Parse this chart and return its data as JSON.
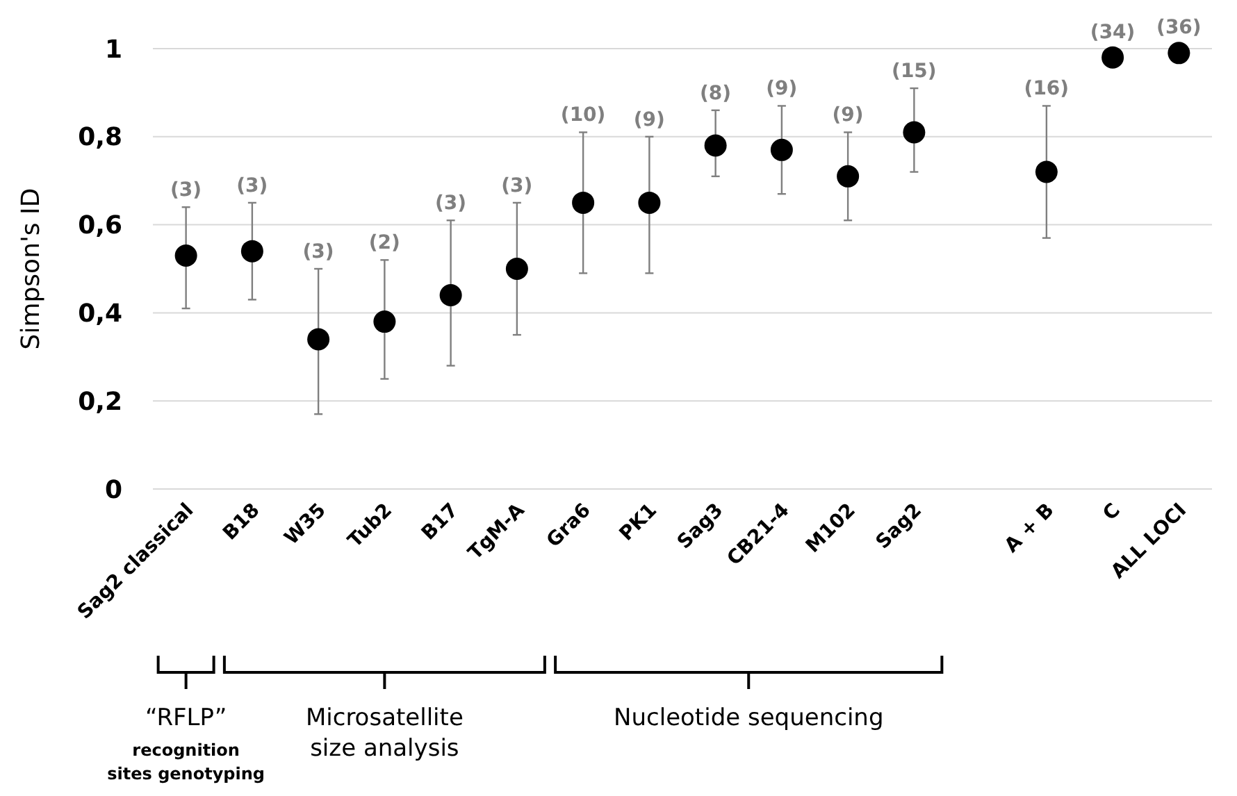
{
  "chart_data": {
    "type": "scatter",
    "ylabel": "Simpson's ID",
    "categories": [
      "Sag2 classical",
      "B18",
      "W35",
      "Tub2",
      "B17",
      "TgM-A",
      "Gra6",
      "PK1",
      "Sag3",
      "CB21-4",
      "M102",
      "Sag2",
      null,
      "A + B",
      "C",
      "ALL LOCI"
    ],
    "values": [
      0.53,
      0.54,
      0.34,
      0.38,
      0.44,
      0.5,
      0.65,
      0.65,
      0.78,
      0.77,
      0.71,
      0.81,
      null,
      0.72,
      0.98,
      0.99
    ],
    "errors": [
      [
        0.41,
        0.64
      ],
      [
        0.43,
        0.65
      ],
      [
        0.17,
        0.5
      ],
      [
        0.25,
        0.52
      ],
      [
        0.28,
        0.61
      ],
      [
        0.35,
        0.65
      ],
      [
        0.49,
        0.81
      ],
      [
        0.49,
        0.8
      ],
      [
        0.71,
        0.86
      ],
      [
        0.67,
        0.87
      ],
      [
        0.61,
        0.81
      ],
      [
        0.72,
        0.91
      ],
      null,
      [
        0.57,
        0.87
      ],
      null,
      null
    ],
    "color": "#000000",
    "marker": "circle",
    "grid": "y",
    "ylim": [
      0,
      1
    ],
    "yticks": [
      0,
      {
        "value": 0.2,
        "label": "0,2"
      },
      {
        "value": 0.4,
        "label": "0,4"
      },
      {
        "value": 0.6,
        "label": "0,6"
      },
      {
        "value": 0.8,
        "label": "0,8"
      },
      1
    ],
    "annotations": [
      "“RFLP”",
      "recognition sites genotyping",
      "Microsatellite size analysis",
      "Nucleotide sequencing",
      {
        "text": "(3)",
        "x": "Sag2 classical",
        "y": 0.64
      },
      {
        "text": "(3)",
        "x": "B18",
        "y": 0.65
      },
      {
        "text": "(3)",
        "x": "W35",
        "y": 0.5
      },
      {
        "text": "(2)",
        "x": "Tub2",
        "y": 0.52
      },
      {
        "text": "(3)",
        "x": "B17",
        "y": 0.61
      },
      {
        "text": "(3)",
        "x": "TgM-A",
        "y": 0.65
      },
      {
        "text": "(10)",
        "x": "Gra6",
        "y": 0.81
      },
      {
        "text": "(9)",
        "x": "PK1",
        "y": 0.8
      },
      {
        "text": "(8)",
        "x": "Sag3",
        "y": 0.86
      },
      {
        "text": "(9)",
        "x": "CB21-4",
        "y": 0.87
      },
      {
        "text": "(9)",
        "x": "M102",
        "y": 0.81
      },
      {
        "text": "(15)",
        "x": "Sag2",
        "y": 0.91
      },
      {
        "text": "(16)",
        "x": "A + B",
        "y": 0.87
      },
      {
        "text": "(34)",
        "x": "C",
        "y": 0.98
      },
      {
        "text": "(36)",
        "x": "ALL LOCI",
        "y": 0.99
      }
    ]
  }
}
